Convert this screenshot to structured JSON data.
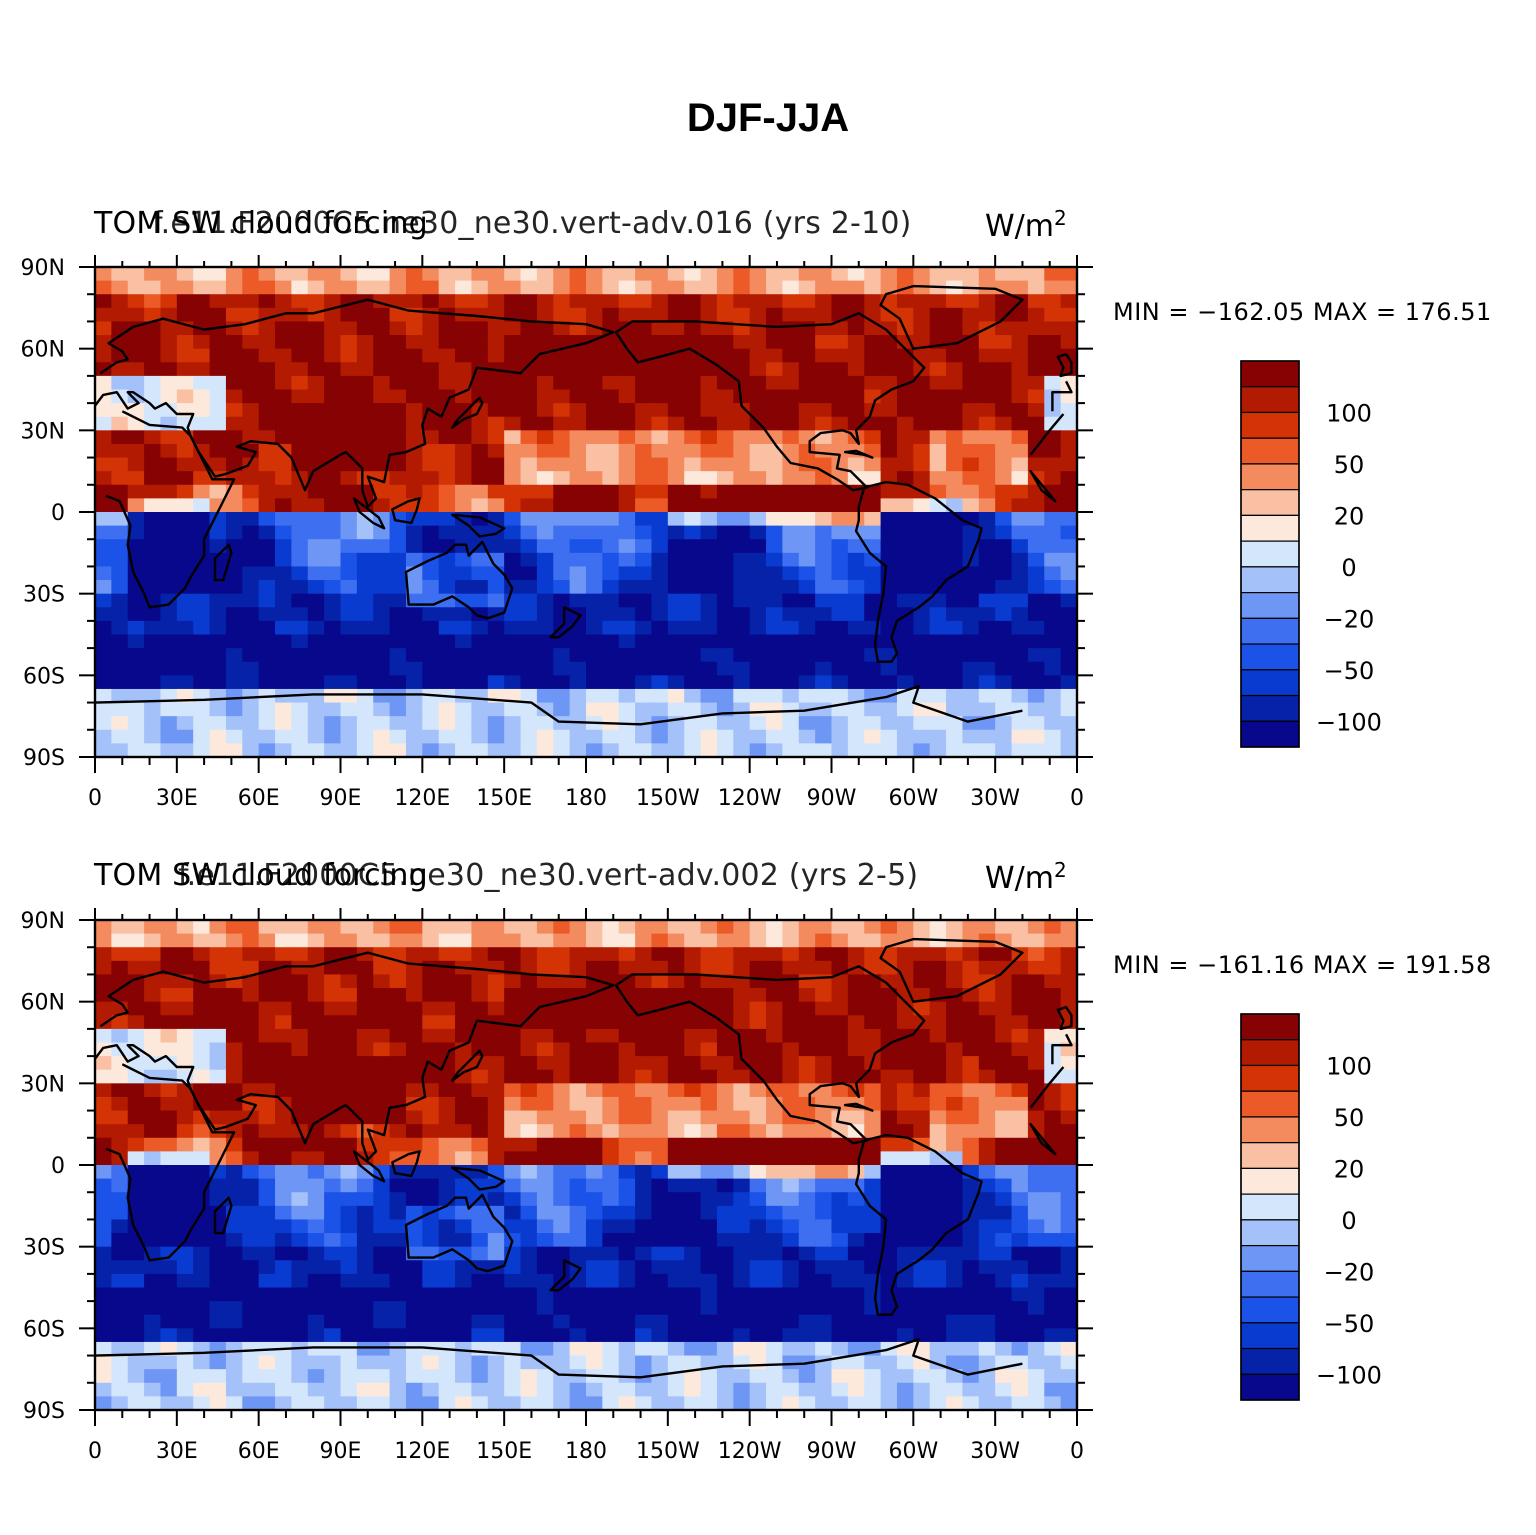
{
  "figure": {
    "title": "DJF-JJA",
    "colorbar_colors": [
      "#08088c",
      "#0622a8",
      "#0a3bd0",
      "#1b52e8",
      "#3d6ff0",
      "#6e97f5",
      "#a4c1fa",
      "#d4e6fc",
      "#fde9dc",
      "#f9c0a4",
      "#f48b5f",
      "#ec5b27",
      "#d43405",
      "#b31a02",
      "#870202"
    ],
    "land_outline_color": "#000000",
    "x_tick_labels": [
      "0",
      "30E",
      "60E",
      "90E",
      "120E",
      "150E",
      "180",
      "150W",
      "120W",
      "90W",
      "60W",
      "30W",
      "0"
    ],
    "y_tick_labels": [
      "90N",
      "60N",
      "30N",
      "0",
      "30S",
      "60S",
      "90S"
    ]
  },
  "panels": [
    {
      "left_title": "TOM SW cloud forcing",
      "center_title": "f.e11.F2000C5.ne30_ne30.vert-adv.016 (yrs 2-10)",
      "units": "W/m",
      "units_sup": "2",
      "minmax_text": "MIN = −162.05  MAX = 176.51",
      "colorbar_labels": [
        "100",
        "50",
        "20",
        "0",
        "−20",
        "−50",
        "−100"
      ]
    },
    {
      "left_title": "TOM SW cloud forcing",
      "center_title": "f.e11.F2000C5.ne30_ne30.vert-adv.002 (yrs 2-5)",
      "units": "W/m",
      "units_sup": "2",
      "minmax_text": "MIN = −161.16  MAX = 191.58",
      "colorbar_labels": [
        "100",
        "50",
        "20",
        "0",
        "−20",
        "−50",
        "−100"
      ]
    }
  ],
  "chart_data": [
    {
      "type": "heatmap",
      "title": "DJF-JJA",
      "subtitle": "f.e11.F2000C5.ne30_ne30.vert-adv.016 (yrs 2-10)",
      "variable": "TOM SW cloud forcing",
      "units": "W/m2",
      "min": -162.05,
      "max": 176.51,
      "contour_levels": [
        -150,
        -125,
        -100,
        -75,
        -50,
        -35,
        -20,
        -10,
        0,
        10,
        20,
        35,
        50,
        75,
        100,
        125,
        150
      ],
      "colorbar_tick_values": [
        100,
        50,
        20,
        0,
        -20,
        -50,
        -100
      ],
      "xlim": [
        0,
        360
      ],
      "ylim": [
        -90,
        90
      ]
    },
    {
      "type": "heatmap",
      "title": "DJF-JJA",
      "subtitle": "f.e11.F2000C5.ne30_ne30.vert-adv.002 (yrs 2-5)",
      "variable": "TOM SW cloud forcing",
      "units": "W/m2",
      "min": -161.16,
      "max": 191.58,
      "contour_levels": [
        -150,
        -125,
        -100,
        -75,
        -50,
        -35,
        -20,
        -10,
        0,
        10,
        20,
        35,
        50,
        75,
        100,
        125,
        150
      ],
      "colorbar_tick_values": [
        100,
        50,
        20,
        0,
        -20,
        -50,
        -100
      ],
      "xlim": [
        0,
        360
      ],
      "ylim": [
        -90,
        90
      ]
    }
  ]
}
